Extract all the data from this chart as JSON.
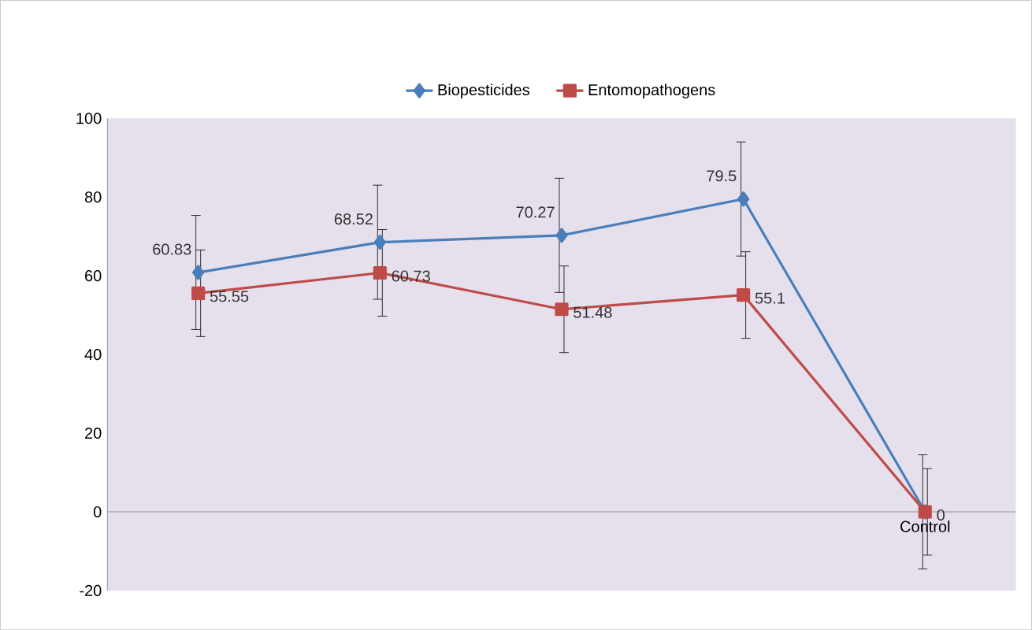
{
  "chart_data": {
    "type": "line",
    "categories": [
      null,
      null,
      null,
      null,
      "Control"
    ],
    "ylim": [
      -20,
      100
    ],
    "yticks": [
      -20,
      0,
      20,
      40,
      60,
      80,
      100
    ],
    "legend": "top",
    "line_style": "solid",
    "series": [
      {
        "name": "Biopesticides",
        "color": "#4a7ebb",
        "marker": "diamond",
        "values": [
          60.83,
          68.52,
          70.27,
          79.5,
          0
        ],
        "errors": [
          14.5,
          14.5,
          14.5,
          14.5,
          14.5
        ],
        "value_labels": [
          "60.83",
          "68.52",
          "70.27",
          "79.5",
          null
        ]
      },
      {
        "name": "Entomopathogens",
        "color": "#be4b48",
        "marker": "square",
        "values": [
          55.55,
          60.73,
          51.48,
          55.1,
          0
        ],
        "errors": [
          11,
          11,
          11,
          11,
          11
        ],
        "value_labels": [
          "55.55",
          "60.73",
          "51.48",
          "55.1",
          "0"
        ]
      }
    ]
  }
}
